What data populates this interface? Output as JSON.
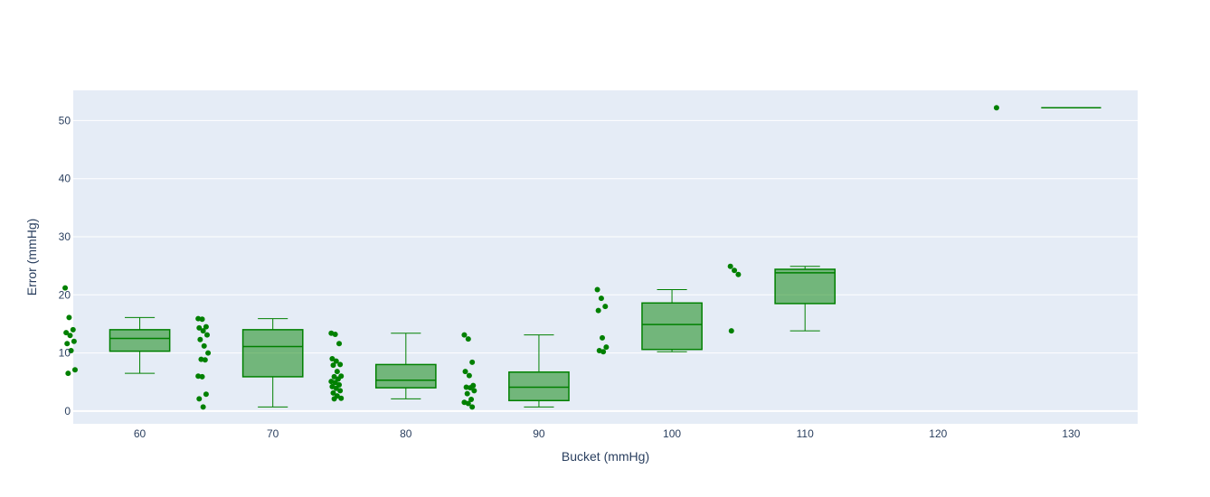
{
  "colors": {
    "plot_bg": "#e5ecf6",
    "grid": "#ffffff",
    "box_line": "#008000",
    "box_fill": "rgba(0,128,0,0.5)",
    "point": "#008000",
    "text": "#2a3f5f"
  },
  "chart_data": {
    "type": "box",
    "title": "",
    "xlabel": "Bucket (mmHg)",
    "ylabel": "Error (mmHg)",
    "xlim": [
      55,
      135
    ],
    "ylim": [
      -2.2,
      55.2
    ],
    "x_ticks": [
      60,
      70,
      80,
      90,
      100,
      110,
      120,
      130
    ],
    "y_ticks": [
      0,
      10,
      20,
      30,
      40,
      50
    ],
    "grid": true,
    "boxpoints": "all",
    "series": [
      {
        "category": 60,
        "box": {
          "lower_whisker": 6.5,
          "q1": 10.3,
          "median": 12.5,
          "q3": 14.0,
          "upper_whisker": 16.1
        },
        "points": [
          21.2,
          16.1,
          14.0,
          13.5,
          13.0,
          12.0,
          11.6,
          10.4,
          7.1,
          6.5
        ]
      },
      {
        "category": 70,
        "box": {
          "lower_whisker": 0.7,
          "q1": 5.9,
          "median": 11.1,
          "q3": 14.0,
          "upper_whisker": 15.9
        },
        "points": [
          15.9,
          15.8,
          14.5,
          14.3,
          13.8,
          13.1,
          12.3,
          11.2,
          10.0,
          8.9,
          8.8,
          6.0,
          5.9,
          2.9,
          2.1,
          0.7
        ]
      },
      {
        "category": 80,
        "box": {
          "lower_whisker": 2.1,
          "q1": 4.0,
          "median": 5.3,
          "q3": 8.0,
          "upper_whisker": 13.4
        },
        "points": [
          13.4,
          13.2,
          11.6,
          9.0,
          8.6,
          8.0,
          7.9,
          6.8,
          6.0,
          5.9,
          5.5,
          5.1,
          4.9,
          4.5,
          4.2,
          3.9,
          3.5,
          3.1,
          2.6,
          2.2,
          2.1
        ]
      },
      {
        "category": 90,
        "box": {
          "lower_whisker": 0.7,
          "q1": 1.8,
          "median": 4.1,
          "q3": 6.7,
          "upper_whisker": 13.1
        },
        "points": [
          13.1,
          12.4,
          8.4,
          6.8,
          6.1,
          4.4,
          4.1,
          4.0,
          3.5,
          3.0,
          2.0,
          1.5,
          1.3,
          0.7
        ]
      },
      {
        "category": 100,
        "box": {
          "lower_whisker": 10.2,
          "q1": 10.6,
          "median": 14.9,
          "q3": 18.6,
          "upper_whisker": 20.9
        },
        "points": [
          20.9,
          19.4,
          18.0,
          17.3,
          12.6,
          11.0,
          10.4,
          10.2
        ]
      },
      {
        "category": 110,
        "box": {
          "lower_whisker": 13.8,
          "q1": 18.5,
          "median": 23.8,
          "q3": 24.4,
          "upper_whisker": 24.9
        },
        "points": [
          24.9,
          24.2,
          23.5,
          13.8
        ]
      },
      {
        "category": 130,
        "box": {
          "lower_whisker": 52.2,
          "q1": 52.2,
          "median": 52.2,
          "q3": 52.2,
          "upper_whisker": 52.2
        },
        "points": [
          52.2
        ]
      }
    ]
  }
}
